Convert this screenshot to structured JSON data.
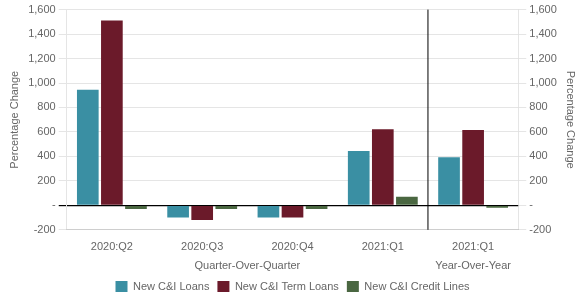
{
  "chart_data": {
    "type": "bar",
    "categories": [
      "2020:Q2",
      "2020:Q3",
      "2020:Q4",
      "2021:Q1",
      "2021:Q1"
    ],
    "series": [
      {
        "name": "New C&I Loans",
        "color": "#3a8fa3",
        "values": [
          944.0,
          -100.0,
          -100.0,
          444.1,
          392.4
        ]
      },
      {
        "name": "New C&I Term Loans",
        "color": "#6b1a2a",
        "values": [
          1510.0,
          -120.0,
          -100.0,
          622.7,
          616.5
        ]
      },
      {
        "name": "New C&I Credit Lines",
        "color": "#4a6741",
        "values": [
          -30.0,
          -30.0,
          -30.0,
          70.0,
          -20.0
        ]
      }
    ],
    "groups": [
      {
        "name": "Quarter-Over-Quarter",
        "count": 4
      },
      {
        "name": "Year-Over-Year",
        "count": 1
      }
    ],
    "ylabel": "Percentage Change",
    "y2label": "Percentage Change",
    "ylim": [
      -200,
      1600
    ],
    "yticks": [
      -200,
      {
        "value": 0,
        "label": "-"
      },
      200,
      400,
      600,
      800,
      {
        "value": 1000,
        "label": "1,000"
      },
      {
        "value": 1200,
        "label": "1,200"
      },
      {
        "value": 1400,
        "label": "1,400"
      },
      {
        "value": 1600,
        "label": "1,600"
      }
    ],
    "y2lim": [
      -200,
      1600
    ],
    "y2ticks": [
      -200,
      {
        "value": 0,
        "label": "-"
      },
      200,
      400,
      600,
      800,
      {
        "value": 1000,
        "label": "1,000"
      },
      {
        "value": 1200,
        "label": "1,200"
      },
      {
        "value": 1400,
        "label": "1,400"
      },
      {
        "value": 1600,
        "label": "1,600"
      }
    ],
    "grid": true,
    "legend": "bottom"
  }
}
